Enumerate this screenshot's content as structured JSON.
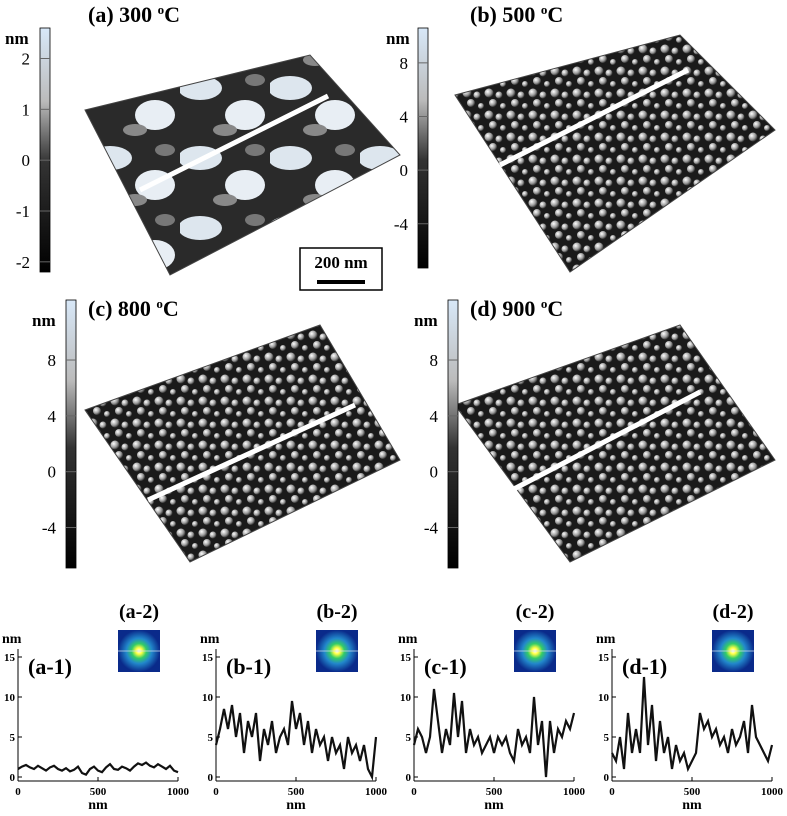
{
  "panels": [
    {
      "title": "(a) 300 ",
      "title_sup": "o",
      "title_unit": "C",
      "colorbar_label": "nm",
      "colorbar_lim": [
        -2.2,
        2.6
      ],
      "colorbar_ticks": [
        -2,
        -1,
        0,
        1,
        2
      ]
    },
    {
      "title": "(b) 500 ",
      "title_sup": "o",
      "title_unit": "C",
      "colorbar_label": "nm",
      "colorbar_lim": [
        -7.3,
        10.6
      ],
      "colorbar_ticks": [
        -4,
        0,
        4,
        8
      ]
    },
    {
      "title": "(c) 800 ",
      "title_sup": "o",
      "title_unit": "C",
      "colorbar_label": "nm",
      "colorbar_lim": [
        -6.9,
        12.3
      ],
      "colorbar_ticks": [
        -4,
        0,
        4,
        8
      ]
    },
    {
      "title": "(d) 900 ",
      "title_sup": "o",
      "title_unit": "C",
      "colorbar_label": "nm",
      "colorbar_lim": [
        -6.9,
        12.3
      ],
      "colorbar_ticks": [
        -4,
        0,
        4,
        8
      ]
    }
  ],
  "scale_bar": "200 nm",
  "chart_data": [
    {
      "type": "line",
      "label": "(a-1)",
      "inset_label": "(a-2)",
      "ylabel": "nm",
      "xlabel": "nm",
      "color": "#111111",
      "xlim": [
        0,
        1000
      ],
      "ylim": [
        -0.5,
        16
      ],
      "xticks": [
        0,
        500,
        1000
      ],
      "yticks": [
        0,
        5,
        10,
        15
      ],
      "x": [
        0,
        25,
        50,
        75,
        100,
        125,
        150,
        175,
        200,
        225,
        250,
        275,
        300,
        325,
        350,
        375,
        400,
        425,
        450,
        475,
        500,
        525,
        550,
        575,
        600,
        625,
        650,
        675,
        700,
        725,
        750,
        775,
        800,
        825,
        850,
        875,
        900,
        925,
        950,
        975,
        1000
      ],
      "values": [
        1,
        1.3,
        1.5,
        1.2,
        1,
        1.4,
        1.1,
        0.8,
        1.2,
        1.4,
        1,
        0.8,
        1.1,
        0.7,
        0.9,
        1.3,
        0.5,
        0.3,
        1,
        1.3,
        0.8,
        0.6,
        1.2,
        1.6,
        1,
        0.9,
        1.3,
        1.1,
        0.8,
        1.3,
        1.7,
        1.5,
        1.8,
        1.4,
        1.2,
        1.6,
        1.3,
        1,
        1.4,
        0.8,
        0.6
      ]
    },
    {
      "type": "line",
      "label": "(b-1)",
      "inset_label": "(b-2)",
      "ylabel": "nm",
      "xlabel": "nm",
      "color": "#111111",
      "xlim": [
        0,
        1000
      ],
      "ylim": [
        -0.5,
        16
      ],
      "xticks": [
        0,
        500,
        1000
      ],
      "yticks": [
        0,
        5,
        10,
        15
      ],
      "x": [
        0,
        25,
        50,
        75,
        100,
        125,
        150,
        175,
        200,
        225,
        250,
        275,
        300,
        325,
        350,
        375,
        400,
        425,
        450,
        475,
        500,
        525,
        550,
        575,
        600,
        625,
        650,
        675,
        700,
        725,
        750,
        775,
        800,
        825,
        850,
        875,
        900,
        925,
        950,
        975,
        1000
      ],
      "values": [
        4,
        6,
        8.5,
        6,
        9,
        5,
        8,
        3,
        7,
        5,
        8,
        2,
        6,
        4,
        7,
        3,
        5,
        6,
        4,
        9.5,
        6,
        8,
        4,
        7,
        3,
        6,
        4,
        5,
        2,
        5,
        3,
        4,
        1,
        5,
        3,
        4,
        2,
        4,
        1,
        0,
        5
      ]
    },
    {
      "type": "line",
      "label": "(c-1)",
      "inset_label": "(c-2)",
      "ylabel": "nm",
      "xlabel": "nm",
      "color": "#111111",
      "xlim": [
        0,
        1000
      ],
      "ylim": [
        -0.5,
        16
      ],
      "xticks": [
        0,
        500,
        1000
      ],
      "yticks": [
        0,
        5,
        10,
        15
      ],
      "x": [
        0,
        25,
        50,
        75,
        100,
        125,
        150,
        175,
        200,
        225,
        250,
        275,
        300,
        325,
        350,
        375,
        400,
        425,
        450,
        475,
        500,
        525,
        550,
        575,
        600,
        625,
        650,
        675,
        700,
        725,
        750,
        775,
        800,
        825,
        850,
        875,
        900,
        925,
        950,
        975,
        1000
      ],
      "values": [
        4,
        6,
        5,
        3,
        5,
        11,
        7,
        3,
        6,
        4,
        10.5,
        5,
        9.5,
        3,
        6,
        4,
        5,
        3,
        4,
        5,
        3,
        5,
        4,
        5,
        3,
        2,
        6,
        4,
        5,
        3,
        10,
        4,
        7,
        0,
        7,
        3,
        6,
        5,
        7,
        6,
        8
      ]
    },
    {
      "type": "line",
      "label": "(d-1)",
      "inset_label": "(d-2)",
      "ylabel": "nm",
      "xlabel": "nm",
      "color": "#111111",
      "xlim": [
        0,
        1000
      ],
      "ylim": [
        -0.5,
        16
      ],
      "xticks": [
        0,
        500,
        1000
      ],
      "yticks": [
        0,
        5,
        10,
        15
      ],
      "x": [
        0,
        25,
        50,
        75,
        100,
        125,
        150,
        175,
        200,
        225,
        250,
        275,
        300,
        325,
        350,
        375,
        400,
        425,
        450,
        475,
        500,
        525,
        550,
        575,
        600,
        625,
        650,
        675,
        700,
        725,
        750,
        775,
        800,
        825,
        850,
        875,
        900,
        925,
        950,
        975,
        1000
      ],
      "values": [
        3,
        2,
        5,
        1,
        8,
        3,
        6,
        3,
        12.5,
        4,
        9,
        2,
        7,
        3,
        5,
        1,
        4,
        2,
        3,
        1,
        2,
        3,
        8,
        6,
        7,
        5,
        6,
        4,
        5,
        3,
        6,
        4,
        5,
        7,
        3,
        9,
        5,
        4,
        3,
        2,
        4
      ]
    }
  ]
}
